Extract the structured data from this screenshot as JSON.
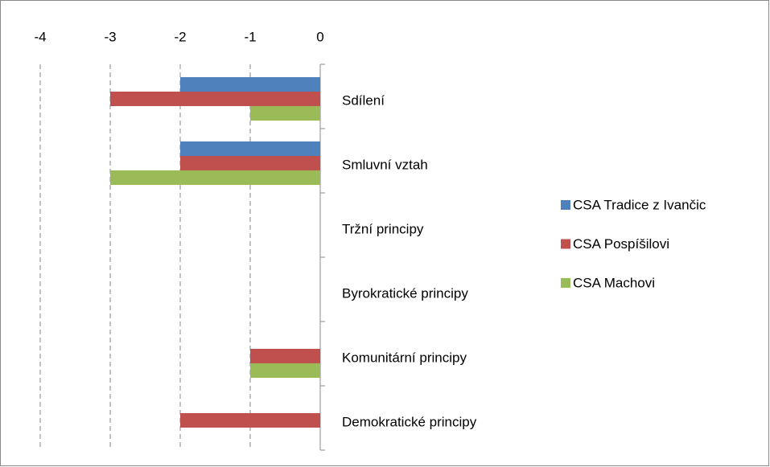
{
  "chart_data": {
    "type": "bar",
    "orientation": "horizontal",
    "categories": [
      "Sdílení",
      "Smluvní vztah",
      "Tržní principy",
      "Byrokratické principy",
      "Komunitární principy",
      "Demokratické principy"
    ],
    "series": [
      {
        "name": "CSA Tradice z Ivančic",
        "color": "#4f81bd",
        "values": [
          -2,
          -2,
          0,
          0,
          0,
          0
        ]
      },
      {
        "name": "CSA Pospíšilovi",
        "color": "#c0504d",
        "values": [
          -3,
          -2,
          0,
          0,
          -1,
          -2
        ]
      },
      {
        "name": "CSA Machovi",
        "color": "#9bbb59",
        "values": [
          -1,
          -3,
          0,
          0,
          -1,
          0
        ]
      }
    ],
    "xlim": [
      -4,
      0
    ],
    "xticks": [
      -4,
      -3,
      -2,
      -1,
      0
    ],
    "grid": true,
    "legend": "right"
  }
}
